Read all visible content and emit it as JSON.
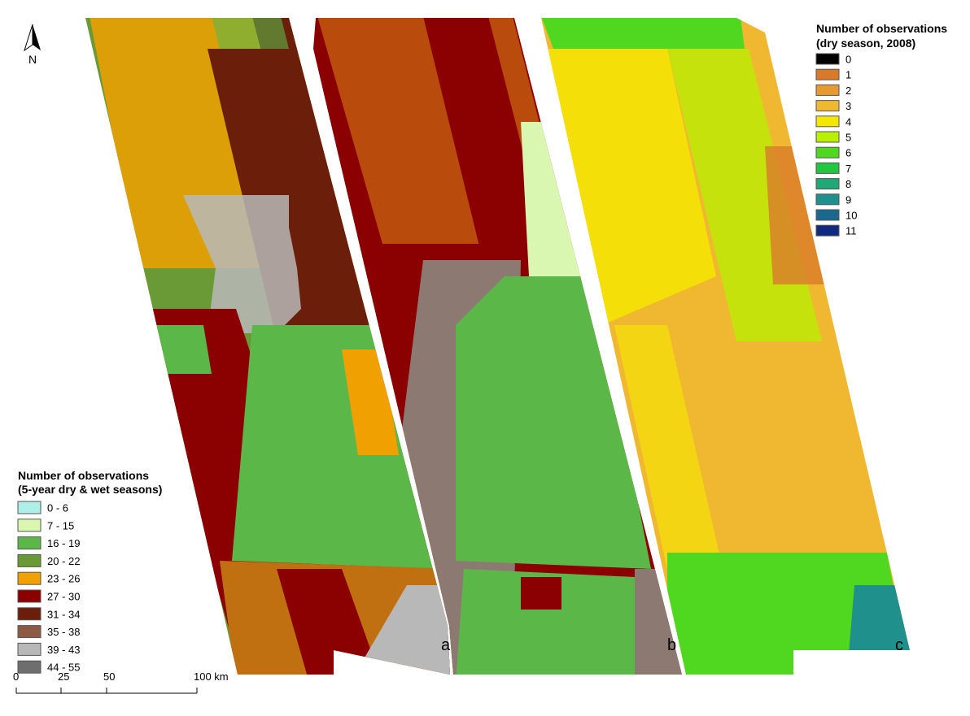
{
  "north_label": "N",
  "panels": [
    "a",
    "b",
    "c"
  ],
  "legend_left": {
    "title": [
      "Number of observations",
      "(5-year dry & wet seasons)"
    ],
    "items": [
      {
        "label": "0 - 6",
        "color": "#aef0e8"
      },
      {
        "label": "7 - 15",
        "color": "#d9f7b0"
      },
      {
        "label": "16 - 19",
        "color": "#5bb848"
      },
      {
        "label": "20 - 22",
        "color": "#6a9a35"
      },
      {
        "label": "23 - 26",
        "color": "#f0a000"
      },
      {
        "label": "27 - 30",
        "color": "#8b0000"
      },
      {
        "label": "31 - 34",
        "color": "#6b1f0a"
      },
      {
        "label": "35 - 38",
        "color": "#8c5a45"
      },
      {
        "label": "39 - 43",
        "color": "#b8b8b8"
      },
      {
        "label": "44 - 55",
        "color": "#6e6e6e"
      }
    ]
  },
  "legend_right": {
    "title": [
      "Number of observations",
      "(dry season, 2008)"
    ],
    "items": [
      {
        "label": "0",
        "color": "#000000"
      },
      {
        "label": "1",
        "color": "#d97a2a"
      },
      {
        "label": "2",
        "color": "#e89a30"
      },
      {
        "label": "3",
        "color": "#f0b830"
      },
      {
        "label": "4",
        "color": "#f5e800"
      },
      {
        "label": "5",
        "color": "#b8f000"
      },
      {
        "label": "6",
        "color": "#50d820"
      },
      {
        "label": "7",
        "color": "#20c840"
      },
      {
        "label": "8",
        "color": "#20a878"
      },
      {
        "label": "9",
        "color": "#20908c"
      },
      {
        "label": "10",
        "color": "#1a6890"
      },
      {
        "label": "11",
        "color": "#102a80"
      }
    ]
  },
  "scale_bar": {
    "labels": [
      "0",
      "25",
      "50",
      "100 km"
    ]
  }
}
